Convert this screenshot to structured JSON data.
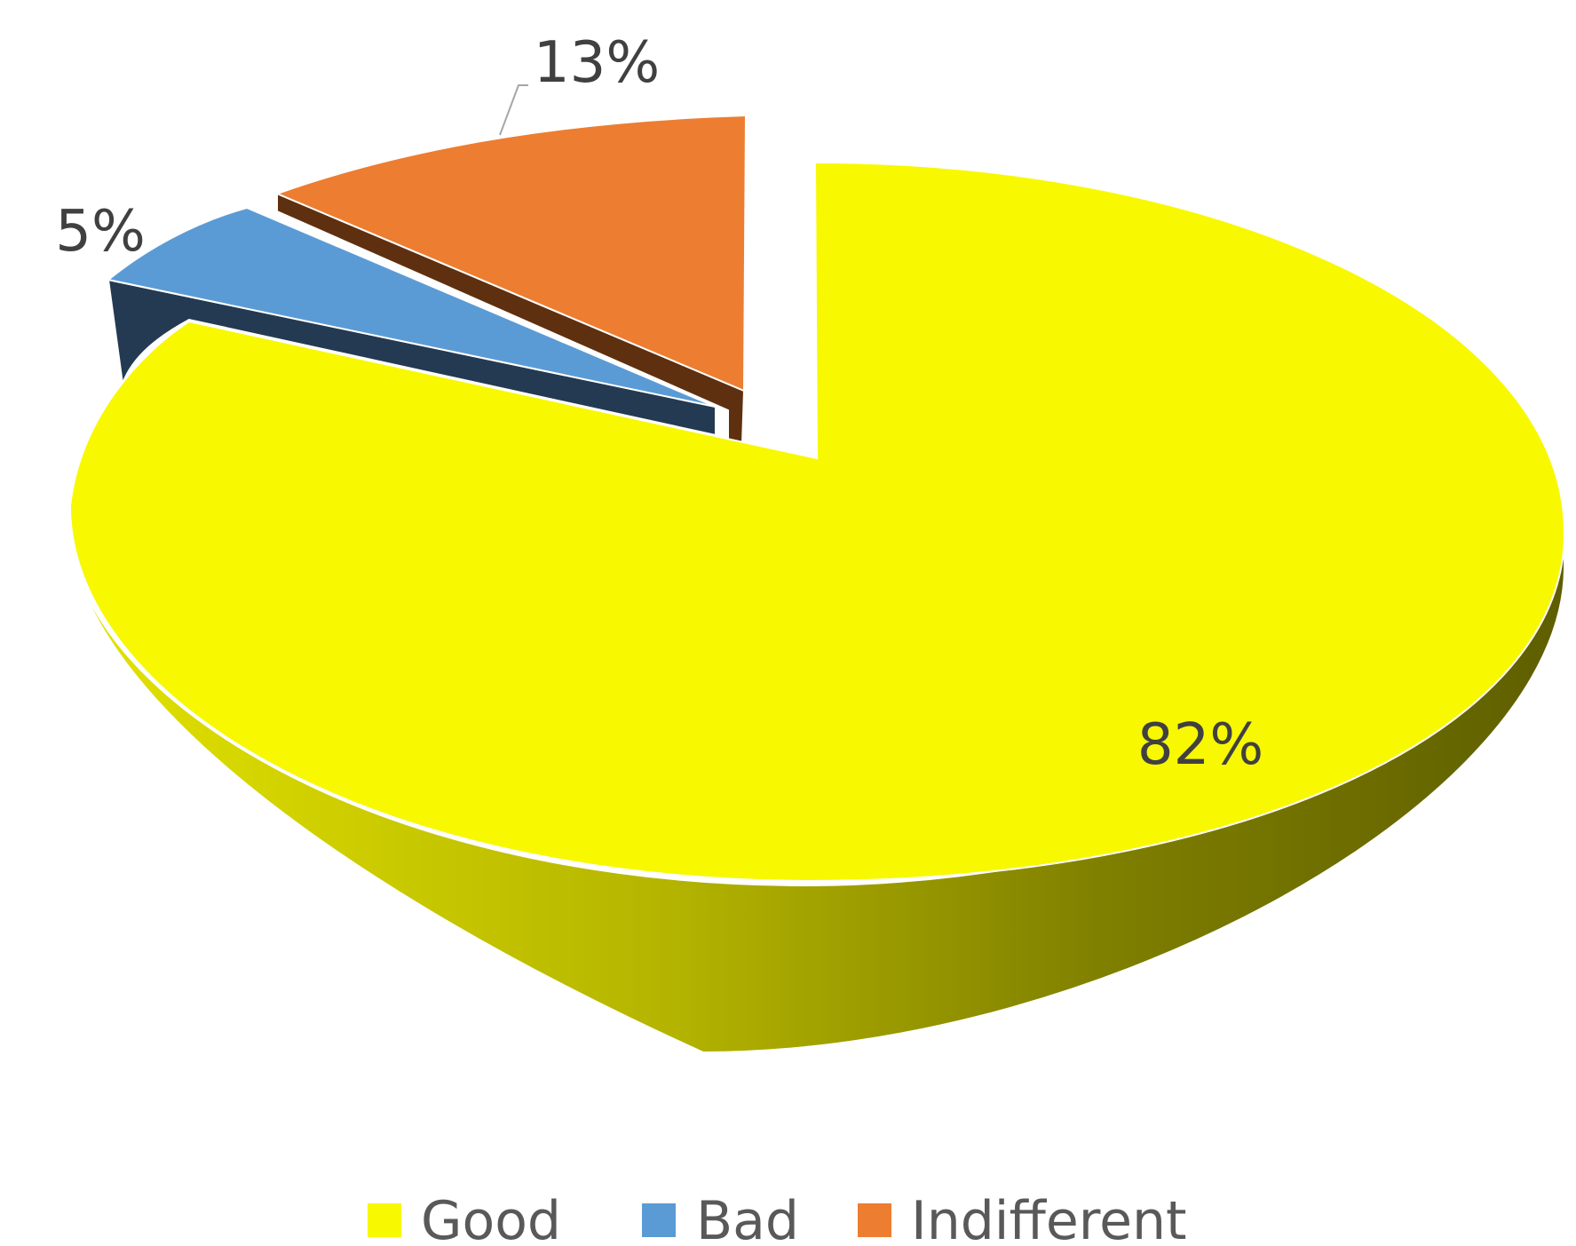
{
  "chart_data": {
    "type": "pie",
    "title": "",
    "three_d": true,
    "exploded": true,
    "categories": [
      "Good",
      "Bad",
      "Indifferent"
    ],
    "values": [
      82,
      5,
      13
    ],
    "labels": [
      "82%",
      "5%",
      "13%"
    ],
    "colors": [
      "#F8F800",
      "#5B9BD5",
      "#ED7D31"
    ],
    "legend": {
      "position": "bottom",
      "entries": [
        "Good",
        "Bad",
        "Indifferent"
      ]
    }
  }
}
